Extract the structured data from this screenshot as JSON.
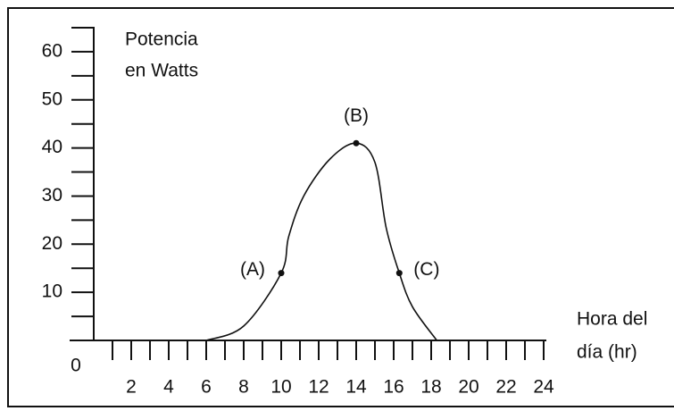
{
  "chart_data": {
    "type": "line",
    "y_label_lines": [
      "Potencia",
      "en Watts"
    ],
    "x_label_lines": [
      "Hora del",
      "día (hr)"
    ],
    "x": [
      6,
      8,
      10,
      10.4,
      11.2,
      12.6,
      14,
      15,
      15.6,
      16.3,
      17,
      18.3
    ],
    "values": [
      0,
      3,
      14,
      21.6,
      30,
      37.7,
      41,
      37,
      23.4,
      14,
      7,
      0
    ],
    "point_labels": [
      null,
      null,
      "(A)",
      null,
      null,
      null,
      "(B)",
      null,
      null,
      "(C)",
      null,
      null
    ],
    "color": "#111111",
    "xlim": [
      0,
      24
    ],
    "ylim": [
      0,
      65
    ],
    "xticks": [
      0,
      2,
      4,
      6,
      8,
      10,
      12,
      14,
      16,
      18,
      20,
      22,
      24
    ],
    "xminor": [
      1,
      3,
      5,
      7,
      9,
      11,
      13,
      15,
      17,
      19,
      21,
      23
    ],
    "yticks": [
      10,
      20,
      30,
      40,
      50,
      60
    ],
    "yminor": [
      5,
      15,
      25,
      35,
      45,
      55,
      65
    ]
  }
}
